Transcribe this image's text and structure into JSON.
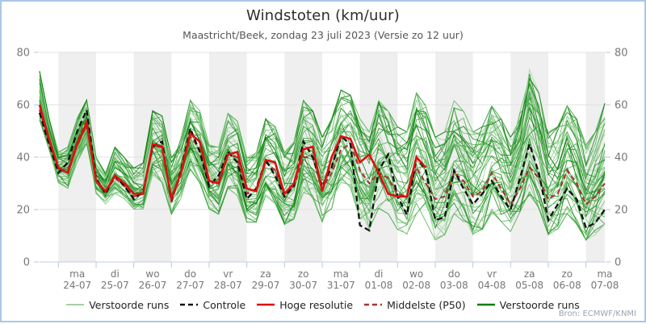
{
  "header": {
    "title": "Windstoten (km/uur)",
    "subtitle": "Maastricht/Beek, zondag 23 juli 2023 (Versie zo 12 uur)"
  },
  "source": "Bron: ECMWF/KNMI",
  "colors": {
    "frame_border": "#a9c7e7",
    "band_gray": "#efefef",
    "gridline": "#e0e0e0",
    "axis_line": "#c2cdde",
    "axis_tick": "#b9c6d8",
    "axis_label": "#777777",
    "ensemble_light": "#a6cfa6",
    "control_black": "#111111",
    "hires_red": "#dd0f0f",
    "p50_darkred": "#a83232",
    "ensemble_dark": "#0a7d0a"
  },
  "legend": [
    {
      "label": "Verstoorde runs",
      "color": "#a6cfa6",
      "dash": false
    },
    {
      "label": "Controle",
      "color": "#111111",
      "dash": true
    },
    {
      "label": "Hoge resolutie",
      "color": "#dd0f0f",
      "dash": false
    },
    {
      "label": "Middelste (P50)",
      "color": "#a83232",
      "dash": true
    },
    {
      "label": "Verstoorde runs",
      "color": "#0a7d0a",
      "dash": false
    }
  ],
  "chart_data": {
    "type": "line",
    "title": "Windstoten (km/uur)",
    "subtitle": "Maastricht/Beek, zondag 23 juli 2023 (Versie zo 12 uur)",
    "ylabel": "km/uur",
    "ylim": [
      0,
      80
    ],
    "yticks": [
      0,
      20,
      40,
      60,
      80
    ],
    "x_start": "2023-07-23 12:00",
    "x_step_hours": 6,
    "x_total_hours": 360,
    "x_day_labels": [
      {
        "day": "ma",
        "date": "24-07"
      },
      {
        "day": "di",
        "date": "25-07"
      },
      {
        "day": "wo",
        "date": "26-07"
      },
      {
        "day": "do",
        "date": "27-07"
      },
      {
        "day": "vr",
        "date": "28-07"
      },
      {
        "day": "za",
        "date": "29-07"
      },
      {
        "day": "zo",
        "date": "30-07"
      },
      {
        "day": "ma",
        "date": "31-07"
      },
      {
        "day": "di",
        "date": "01-08"
      },
      {
        "day": "wo",
        "date": "02-08"
      },
      {
        "day": "do",
        "date": "03-08"
      },
      {
        "day": "vr",
        "date": "04-08"
      },
      {
        "day": "za",
        "date": "05-08"
      },
      {
        "day": "zo",
        "date": "06-08"
      },
      {
        "day": "ma",
        "date": "07-08"
      }
    ],
    "series": [
      {
        "name": "Controle",
        "style": "dashed-black",
        "values": [
          57,
          45,
          34,
          38,
          50,
          58,
          32,
          26,
          33,
          29,
          24,
          27,
          44,
          46,
          23,
          35,
          51,
          42,
          29,
          33,
          42,
          38,
          24,
          28,
          39,
          33,
          25,
          29,
          46,
          40,
          29,
          36,
          48,
          45,
          14,
          12,
          35,
          41,
          25,
          18,
          40,
          35,
          16,
          17,
          35,
          28,
          22,
          26,
          31,
          25,
          20,
          32,
          45,
          34,
          16,
          22,
          28,
          24,
          13,
          15,
          20
        ]
      },
      {
        "name": "Hoge resolutie",
        "style": "solid-red",
        "values": [
          60,
          47,
          36,
          34,
          45,
          53,
          31,
          27,
          33,
          30,
          26,
          26,
          45,
          44,
          24,
          34,
          49,
          46,
          31,
          30,
          41,
          42,
          28,
          27,
          39,
          38,
          26,
          30,
          43,
          44,
          27,
          40,
          48,
          47,
          38,
          41,
          34,
          26,
          25,
          25,
          40,
          36,
          null,
          null,
          null,
          null,
          null,
          null,
          null,
          null,
          null,
          null,
          null,
          null,
          null,
          null,
          null,
          null,
          null,
          null,
          null
        ]
      },
      {
        "name": "Middelste (P50)",
        "style": "dashed-darkred",
        "values": [
          58,
          46,
          35,
          35,
          46,
          54,
          31,
          27,
          32,
          29,
          25,
          26,
          44,
          44,
          24,
          33,
          48,
          43,
          30,
          31,
          41,
          40,
          26,
          28,
          38,
          35,
          26,
          29,
          40,
          40,
          28,
          34,
          43,
          45,
          35,
          30,
          34,
          32,
          26,
          25,
          36,
          30,
          24,
          25,
          34,
          31,
          25,
          27,
          34,
          28,
          22,
          28,
          36,
          32,
          24,
          26,
          35,
          30,
          22,
          25,
          30
        ]
      },
      {
        "name": "Verstoorde runs (envelope min)",
        "style": "envelope",
        "values": [
          54,
          43,
          30,
          28,
          38,
          45,
          26,
          22,
          26,
          24,
          20,
          20,
          33,
          30,
          18,
          24,
          35,
          30,
          20,
          18,
          28,
          25,
          15,
          15,
          25,
          22,
          14,
          16,
          26,
          24,
          15,
          20,
          30,
          28,
          16,
          12,
          20,
          18,
          12,
          10,
          18,
          15,
          8,
          10,
          18,
          15,
          10,
          12,
          18,
          15,
          10,
          15,
          25,
          20,
          10,
          12,
          18,
          14,
          8,
          10,
          14
        ]
      },
      {
        "name": "Verstoorde runs (envelope max)",
        "style": "envelope",
        "values": [
          73,
          55,
          42,
          44,
          55,
          62,
          40,
          34,
          44,
          40,
          36,
          38,
          58,
          56,
          40,
          48,
          62,
          58,
          45,
          44,
          57,
          54,
          40,
          42,
          55,
          52,
          42,
          46,
          62,
          58,
          48,
          55,
          66,
          64,
          55,
          50,
          62,
          58,
          52,
          50,
          65,
          60,
          48,
          50,
          62,
          58,
          50,
          52,
          60,
          55,
          48,
          58,
          74,
          65,
          50,
          52,
          60,
          55,
          45,
          50,
          61
        ]
      }
    ],
    "ensemble_members": 50,
    "member_colors": [
      "#9ed69e",
      "#83c983",
      "#66bb66",
      "#4bad4b",
      "#37a037",
      "#259225",
      "#148514",
      "#0a7d0a"
    ],
    "legend_position": "bottom",
    "grid": true,
    "shaded_day_bands": "alternating, first full day (24-07) shaded"
  }
}
